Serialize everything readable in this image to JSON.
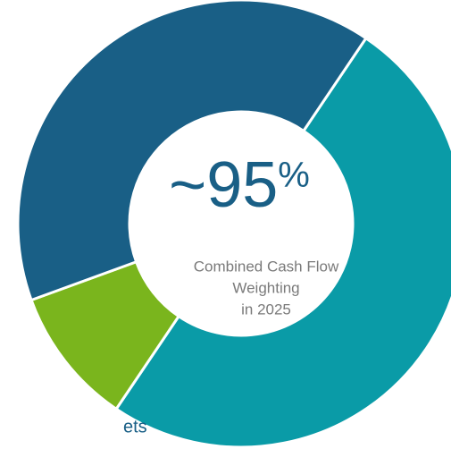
{
  "chart_data": {
    "type": "donut",
    "center_value": "~95",
    "center_unit": "%",
    "center_text": [
      "Combined Cash Flow",
      "Weighting",
      "in 2025"
    ],
    "legend_fragment": "ets",
    "series": [
      {
        "color": "#0a9ba7",
        "value": 50
      },
      {
        "color": "#7ab51d",
        "value": 10
      },
      {
        "color": "#195f86",
        "value": 40
      }
    ]
  }
}
